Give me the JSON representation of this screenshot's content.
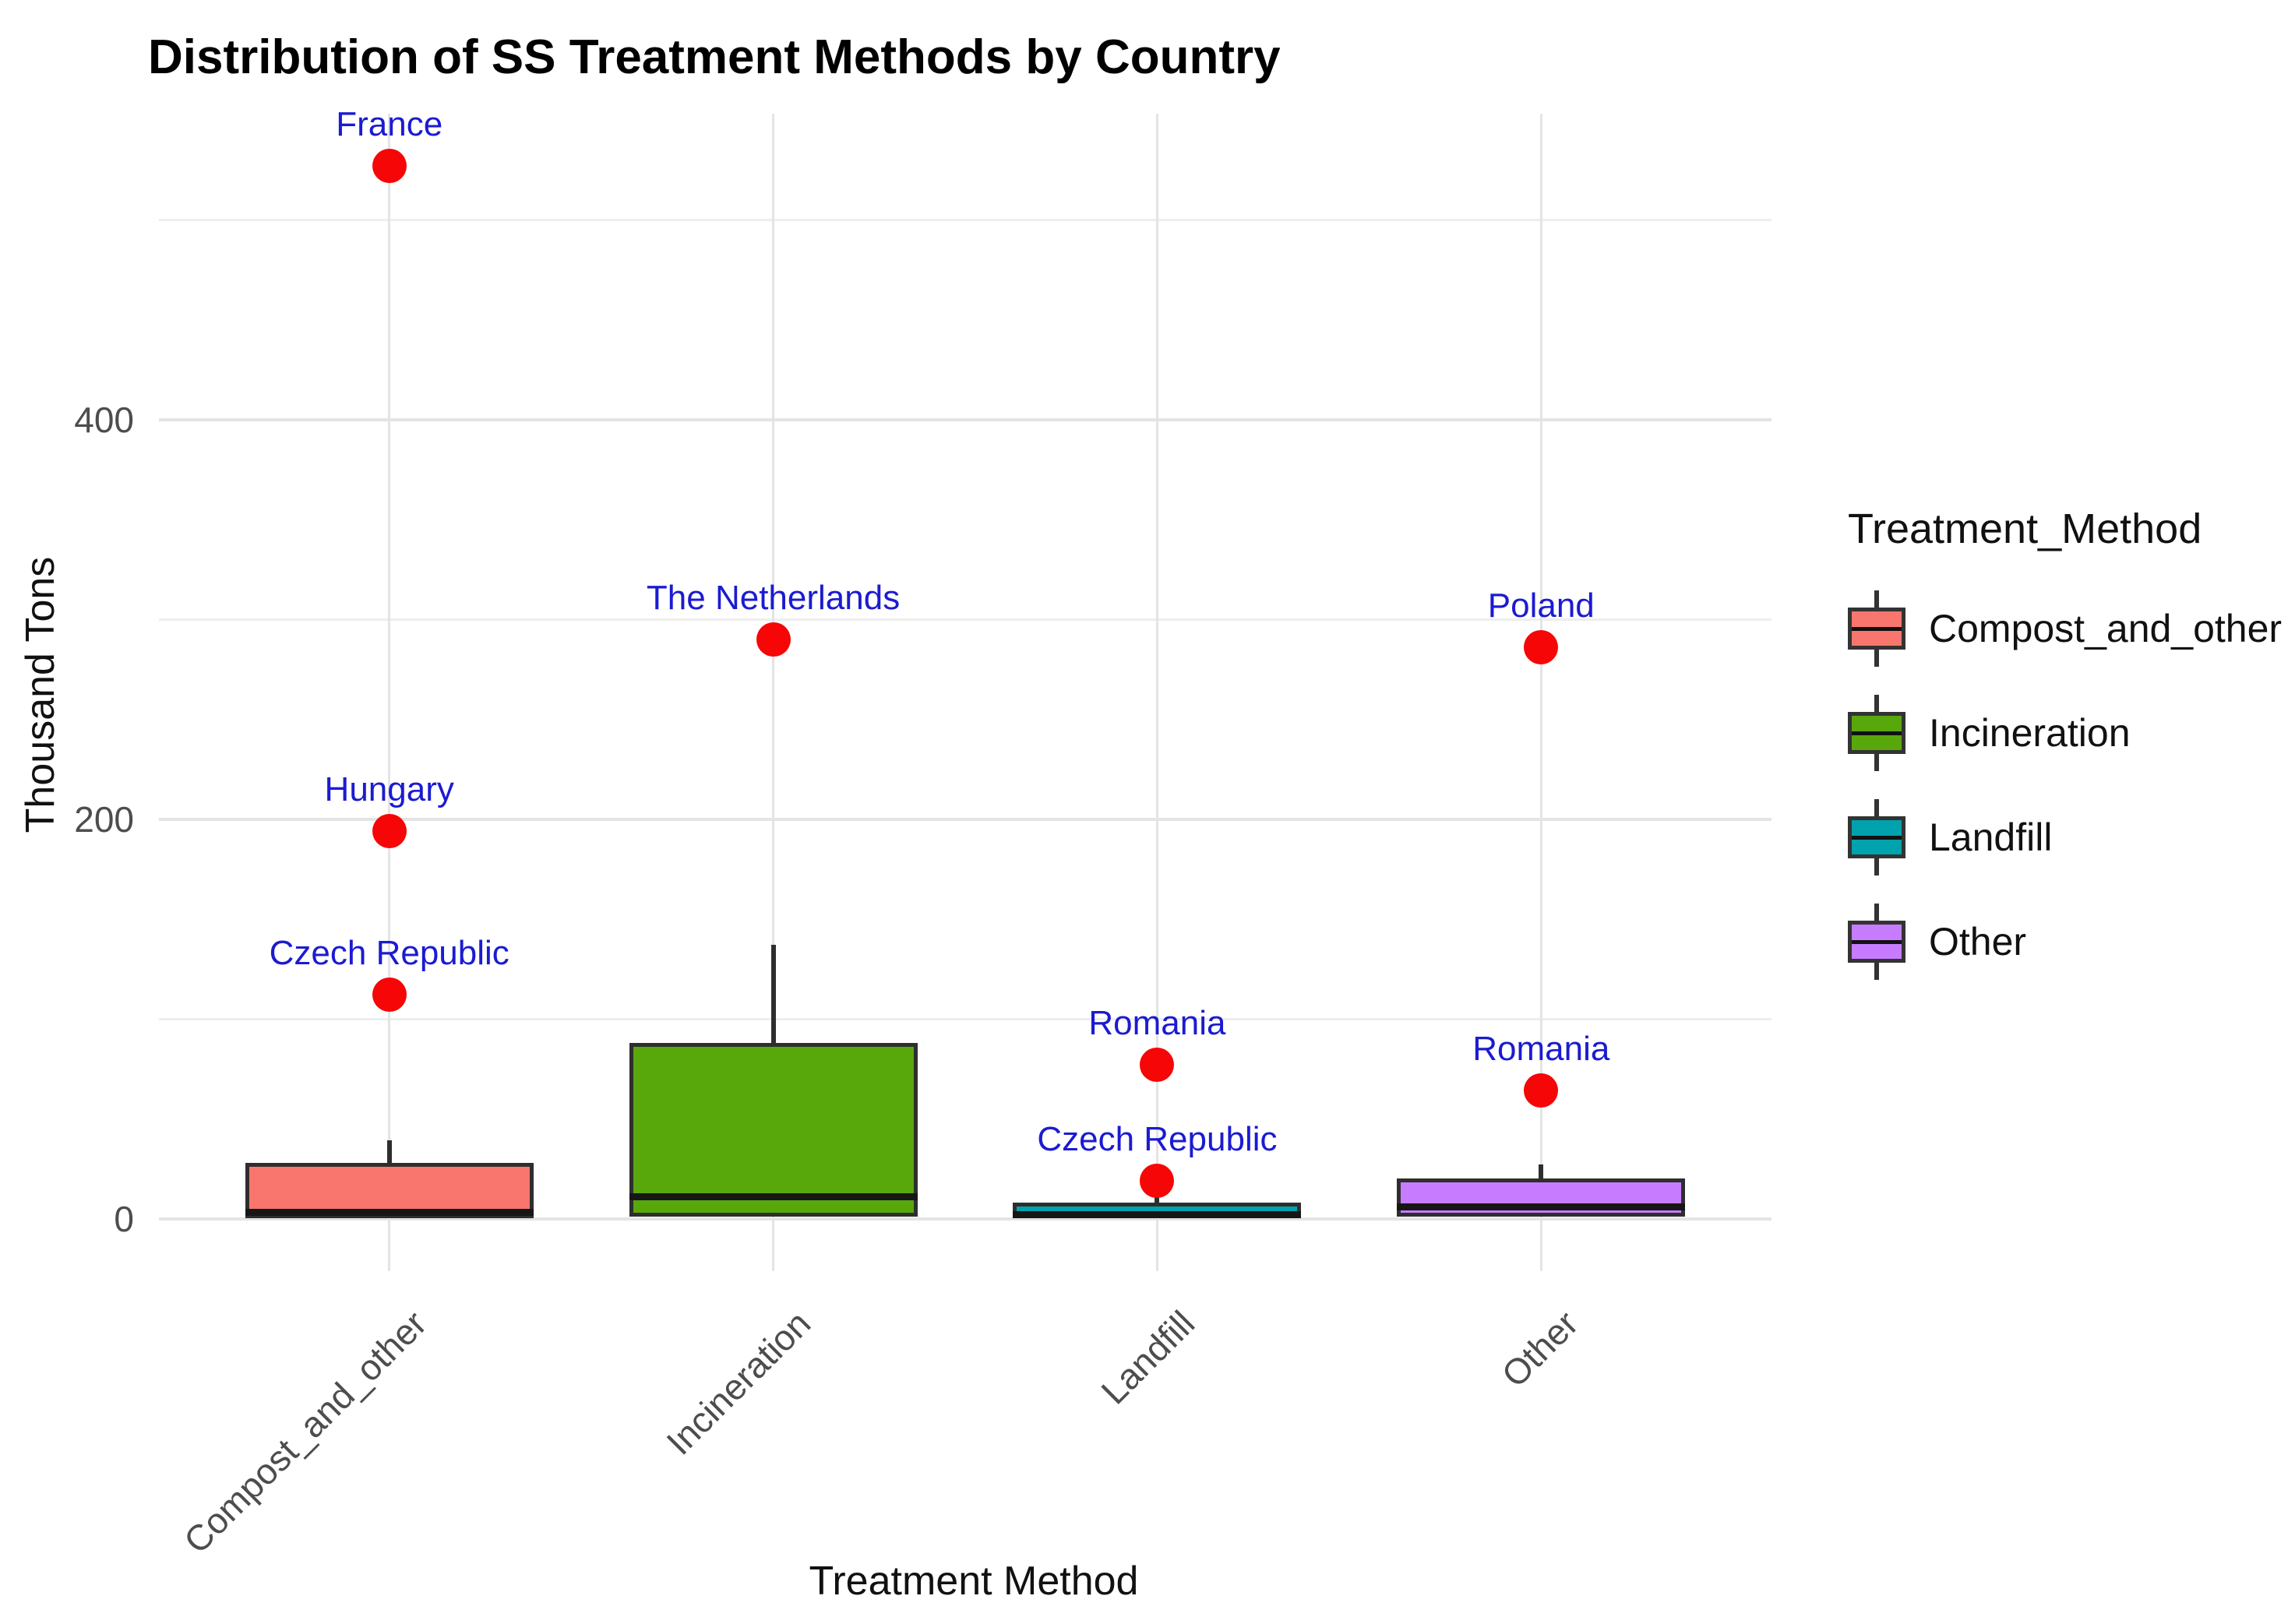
{
  "title": "Distribution of SS Treatment Methods by Country",
  "x_axis": {
    "title": "Treatment Method"
  },
  "y_axis": {
    "title": "Thousand Tons",
    "ticks": [
      0,
      200,
      400
    ],
    "minor_ticks": [
      100,
      300,
      500
    ]
  },
  "legend": {
    "title": "Treatment_Method",
    "entries": [
      {
        "label": "Compost_and_other",
        "color": "#F8766D"
      },
      {
        "label": "Incineration",
        "color": "#58A80C"
      },
      {
        "label": "Landfill",
        "color": "#00A2AD"
      },
      {
        "label": "Other",
        "color": "#C77CFF"
      }
    ]
  },
  "point_style": {
    "color": "#F60606",
    "label_color": "#1B1BD1"
  },
  "chart_data": {
    "type": "boxplot",
    "title": "Distribution of SS Treatment Methods by Country",
    "xlabel": "Treatment Method",
    "ylabel": "Thousand Tons",
    "ylim": [
      -26,
      553
    ],
    "yticks": [
      0,
      200,
      400
    ],
    "yticks_minor": [
      100,
      300,
      500
    ],
    "grid": true,
    "legend_position": "right",
    "categories": [
      "Compost_and_other",
      "Incineration",
      "Landfill",
      "Other"
    ],
    "series": [
      {
        "name": "Compost_and_other",
        "color": "#F8766D",
        "q1": 0,
        "median": 3,
        "q3": 28,
        "whisker_high": 39,
        "whisker_low": 0,
        "points": [
          {
            "label": "Czech Republic",
            "value": 112
          },
          {
            "label": "Hungary",
            "value": 194
          },
          {
            "label": "France",
            "value": 527
          }
        ]
      },
      {
        "name": "Incineration",
        "color": "#58A80C",
        "q1": 1,
        "median": 11,
        "q3": 88,
        "whisker_high": 137,
        "whisker_low": 1,
        "points": [
          {
            "label": "The Netherlands",
            "value": 290
          }
        ]
      },
      {
        "name": "Landfill",
        "color": "#00A2AD",
        "q1": 0,
        "median": 2,
        "q3": 8,
        "whisker_high": 11,
        "whisker_low": 0,
        "points": [
          {
            "label": "Czech Republic",
            "value": 19
          },
          {
            "label": "Romania",
            "value": 77
          }
        ]
      },
      {
        "name": "Other",
        "color": "#C77CFF",
        "q1": 1,
        "median": 6,
        "q3": 20,
        "whisker_high": 27,
        "whisker_low": 1,
        "points": [
          {
            "label": "Romania",
            "value": 64
          },
          {
            "label": "Poland",
            "value": 286
          }
        ]
      }
    ]
  }
}
